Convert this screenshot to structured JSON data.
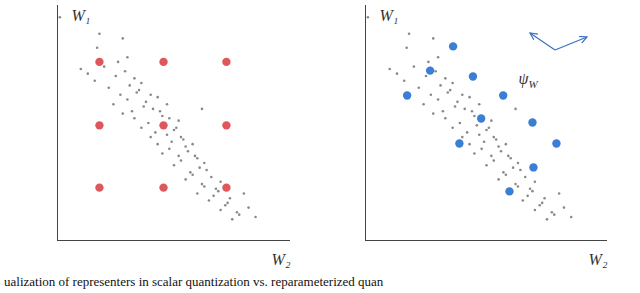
{
  "caption": "ualization of representers in scalar quantization vs. reparameterized quan",
  "chart_data": [
    {
      "type": "scatter",
      "x_label": "W₂",
      "y_label": "W₁",
      "xlim": [
        0,
        100
      ],
      "ylim": [
        0,
        100
      ],
      "tick_labels": false,
      "series": [
        {
          "color": "#8a8a8a",
          "x": [
            1,
            17,
            28,
            30,
            10,
            13,
            16,
            20,
            22,
            25,
            27,
            29,
            31,
            33,
            35,
            24,
            26,
            30,
            32,
            34,
            36,
            38,
            40,
            28,
            33,
            37,
            41,
            43,
            45,
            47,
            36,
            39,
            42,
            44,
            46,
            48,
            50,
            52,
            40,
            43,
            47,
            49,
            51,
            53,
            55,
            45,
            48,
            52,
            54,
            56,
            58,
            60,
            50,
            53,
            57,
            59,
            61,
            63,
            55,
            58,
            62,
            64,
            66,
            68,
            60,
            63,
            67,
            70,
            65,
            69,
            72,
            74,
            70,
            73,
            77,
            80,
            75,
            78,
            82,
            85,
            18,
            62
          ],
          "y": [
            95,
            82,
            86,
            78,
            73,
            71,
            68,
            74,
            65,
            70,
            62,
            72,
            66,
            69,
            64,
            58,
            76,
            60,
            55,
            63,
            67,
            59,
            62,
            54,
            52,
            57,
            56,
            61,
            53,
            58,
            48,
            50,
            46,
            55,
            49,
            52,
            47,
            51,
            44,
            41,
            45,
            42,
            48,
            44,
            40,
            37,
            39,
            36,
            43,
            38,
            41,
            35,
            32,
            34,
            29,
            36,
            31,
            33,
            26,
            28,
            24,
            30,
            27,
            22,
            20,
            23,
            19,
            25,
            17,
            21,
            15,
            18,
            13,
            16,
            12,
            20,
            9,
            11,
            14,
            10,
            88,
            56
          ]
        },
        {
          "color": "#e0575b",
          "x": [
            18,
            45.5,
            72.5,
            18,
            45.5,
            72.5,
            18,
            45.5,
            72.5
          ],
          "y": [
            76,
            76,
            76,
            49,
            49,
            49,
            22.5,
            22.5,
            22.5
          ]
        }
      ]
    },
    {
      "type": "scatter",
      "x_label": "W₂",
      "y_label": "W₁",
      "xlim": [
        0,
        100
      ],
      "ylim": [
        0,
        100
      ],
      "tick_labels": false,
      "annotations": [
        {
          "text": "ψ",
          "subscript": "W"
        }
      ],
      "series": [
        {
          "color": "#8a8a8a",
          "x": [
            1,
            17,
            28,
            30,
            10,
            13,
            16,
            20,
            22,
            25,
            27,
            29,
            31,
            33,
            35,
            24,
            26,
            30,
            32,
            34,
            36,
            38,
            40,
            28,
            33,
            37,
            41,
            43,
            45,
            47,
            36,
            39,
            42,
            44,
            46,
            48,
            50,
            52,
            40,
            43,
            47,
            49,
            51,
            53,
            55,
            45,
            48,
            52,
            54,
            56,
            58,
            60,
            50,
            53,
            57,
            59,
            61,
            63,
            55,
            58,
            62,
            64,
            66,
            68,
            60,
            63,
            67,
            70,
            65,
            69,
            72,
            74,
            70,
            73,
            77,
            80,
            75,
            78,
            82,
            85,
            18,
            62
          ],
          "y": [
            95,
            82,
            86,
            78,
            73,
            71,
            68,
            74,
            65,
            70,
            62,
            72,
            66,
            69,
            64,
            58,
            76,
            60,
            55,
            63,
            67,
            59,
            62,
            54,
            52,
            57,
            56,
            61,
            53,
            58,
            48,
            50,
            46,
            55,
            49,
            52,
            47,
            51,
            44,
            41,
            45,
            42,
            48,
            44,
            40,
            37,
            39,
            36,
            43,
            38,
            41,
            35,
            32,
            34,
            29,
            36,
            31,
            33,
            26,
            28,
            24,
            30,
            27,
            22,
            20,
            23,
            19,
            25,
            17,
            21,
            15,
            18,
            13,
            16,
            12,
            20,
            9,
            11,
            14,
            10,
            88,
            56
          ]
        },
        {
          "color": "#3a7fd5",
          "x": [
            36.2,
            26.7,
            17.2,
            44.4,
            56.9,
            47.8,
            38.8,
            69,
            78.9,
            69.4,
            59.5
          ],
          "y": [
            82.6,
            72.3,
            61.7,
            69.8,
            61.7,
            51.9,
            41.3,
            50.2,
            41.3,
            31.1,
            20.9
          ]
        }
      ]
    }
  ]
}
